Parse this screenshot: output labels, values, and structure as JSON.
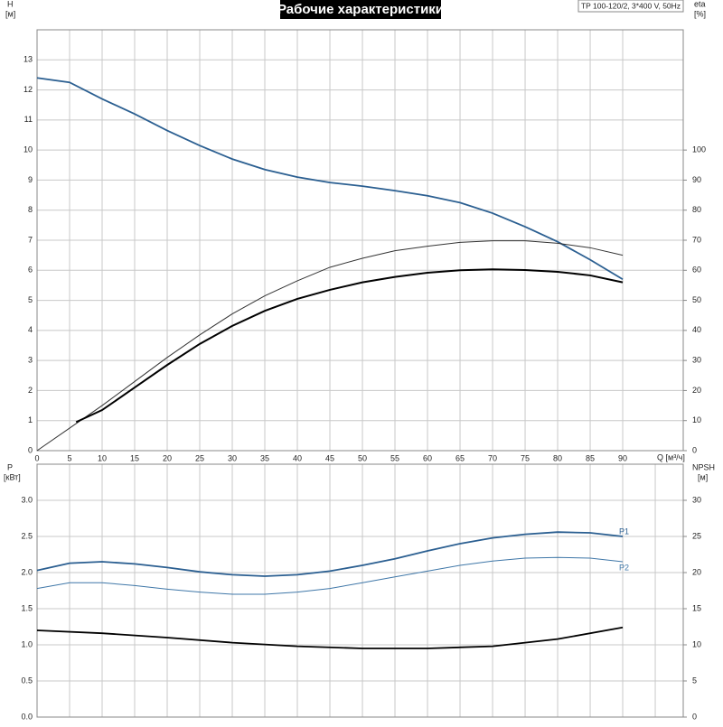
{
  "chart_data": [
    {
      "type": "line",
      "title": "Рабочие характеристики",
      "annotation": "TP 100-120/2, 3*400 V, 50Hz",
      "ylabel": "H",
      "yunit": "[м]",
      "y2label": "eta",
      "y2unit": "[%]",
      "xlabel": "Q [м³/ч]",
      "xlim": [
        0,
        99.3
      ],
      "xticks": [
        0,
        5,
        10,
        15,
        20,
        25,
        30,
        35,
        40,
        45,
        50,
        55,
        60,
        65,
        70,
        75,
        80,
        85,
        90
      ],
      "ylim": [
        0,
        14
      ],
      "yticks": [
        0,
        1,
        2,
        3,
        4,
        5,
        6,
        7,
        8,
        9,
        10,
        11,
        12,
        13
      ],
      "y2lim": [
        0,
        140
      ],
      "y2ticks": [
        0,
        10,
        20,
        30,
        40,
        50,
        60,
        70,
        80,
        90,
        100
      ],
      "grid": true,
      "series": [
        {
          "color": "#2b5f91",
          "width": 1.8,
          "x": [
            0,
            5,
            10,
            15,
            20,
            25,
            30,
            35,
            40,
            45,
            50,
            55,
            60,
            65,
            70,
            75,
            80,
            85,
            90
          ],
          "values": [
            12.4,
            12.25,
            11.7,
            11.2,
            10.65,
            10.15,
            9.7,
            9.35,
            9.1,
            8.92,
            8.8,
            8.65,
            8.48,
            8.25,
            7.9,
            7.45,
            6.95,
            6.35,
            5.7
          ]
        },
        {
          "color": "#333333",
          "width": 1,
          "axis": "y2",
          "x": [
            0,
            5,
            10,
            15,
            20,
            25,
            30,
            35,
            40,
            45,
            50,
            55,
            60,
            65,
            70,
            75,
            80,
            85,
            90
          ],
          "values": [
            0,
            7.5,
            15,
            23,
            31,
            38.5,
            45.5,
            51.5,
            56.5,
            61,
            64,
            66.5,
            68,
            69.3,
            69.8,
            69.8,
            69,
            67.5,
            65
          ]
        },
        {
          "color": "#000000",
          "width": 2,
          "axis": "y2",
          "x": [
            6,
            10,
            15,
            20,
            25,
            30,
            35,
            40,
            45,
            50,
            55,
            60,
            65,
            70,
            75,
            80,
            85,
            90
          ],
          "values": [
            9.5,
            13.5,
            21,
            28.5,
            35.5,
            41.5,
            46.5,
            50.5,
            53.5,
            56,
            57.8,
            59.2,
            60,
            60.3,
            60.1,
            59.5,
            58.3,
            56
          ]
        }
      ]
    },
    {
      "type": "line",
      "ylabel": "P",
      "yunit": "[кВт]",
      "y2label": "NPSH",
      "y2unit": "[м]",
      "xlim": [
        0,
        99.3
      ],
      "xgrid": [
        0,
        5,
        10,
        15,
        20,
        25,
        30,
        35,
        40,
        45,
        50,
        55,
        60,
        65,
        70,
        75,
        80,
        85,
        90,
        95
      ],
      "ylim": [
        0,
        3.5
      ],
      "yticks": [
        {
          "value": 0,
          "label": "0.0"
        },
        0.5,
        {
          "value": 1,
          "label": "1.0"
        },
        1.5,
        {
          "value": 2,
          "label": "2.0"
        },
        2.5,
        {
          "value": 3,
          "label": "3.0"
        }
      ],
      "y2lim": [
        0,
        35
      ],
      "y2ticks": [
        0,
        5,
        10,
        15,
        20,
        25,
        30
      ],
      "grid": true,
      "series": [
        {
          "name": "P1",
          "color": "#2b5f91",
          "width": 1.8,
          "x": [
            0,
            5,
            10,
            15,
            20,
            25,
            30,
            35,
            40,
            45,
            50,
            55,
            60,
            65,
            70,
            75,
            80,
            85,
            90
          ],
          "values": [
            2.03,
            2.13,
            2.15,
            2.12,
            2.07,
            2.01,
            1.97,
            1.95,
            1.97,
            2.02,
            2.1,
            2.19,
            2.3,
            2.4,
            2.48,
            2.53,
            2.56,
            2.55,
            2.5
          ]
        },
        {
          "name": "P2",
          "color": "#3f77a8",
          "width": 1,
          "x": [
            0,
            5,
            10,
            15,
            20,
            25,
            30,
            35,
            40,
            45,
            50,
            55,
            60,
            65,
            70,
            75,
            80,
            85,
            90
          ],
          "values": [
            1.78,
            1.86,
            1.86,
            1.82,
            1.77,
            1.73,
            1.7,
            1.7,
            1.73,
            1.78,
            1.86,
            1.94,
            2.02,
            2.1,
            2.16,
            2.2,
            2.21,
            2.2,
            2.15
          ]
        },
        {
          "color": "#000000",
          "width": 1.8,
          "axis": "y2",
          "x": [
            0,
            10,
            20,
            30,
            40,
            50,
            60,
            70,
            80,
            90
          ],
          "values": [
            12,
            11.6,
            11,
            10.3,
            9.8,
            9.5,
            9.5,
            9.8,
            10.8,
            12.4
          ]
        }
      ]
    }
  ]
}
